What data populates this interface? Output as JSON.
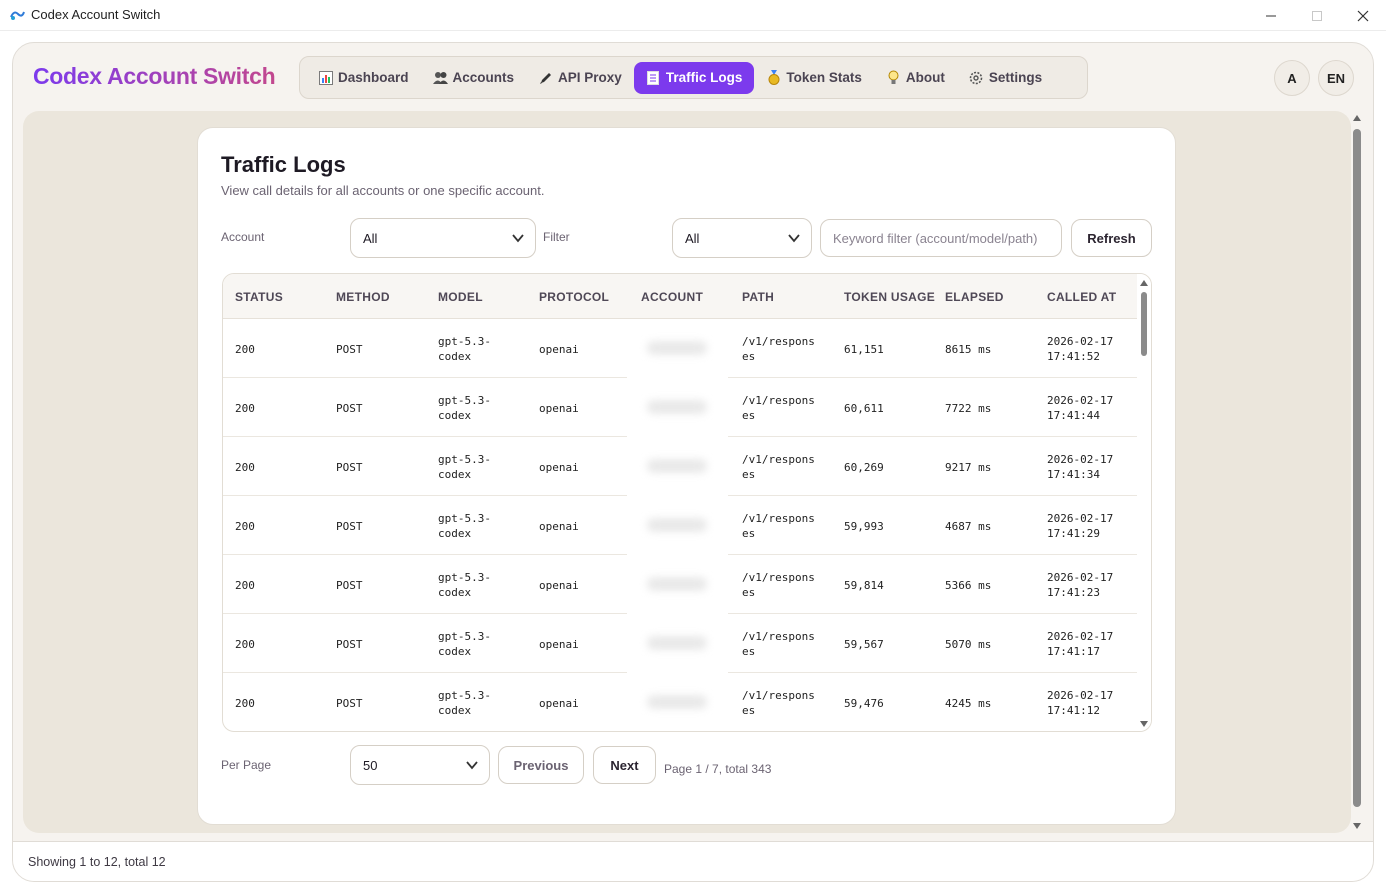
{
  "window": {
    "title": "Codex Account Switch"
  },
  "brand": {
    "name": "Codex Account Switch"
  },
  "nav": [
    {
      "label": "Dashboard",
      "icon": "bar-chart-icon"
    },
    {
      "label": "Accounts",
      "icon": "users-icon"
    },
    {
      "label": "API Proxy",
      "icon": "pen-icon"
    },
    {
      "label": "Traffic Logs",
      "icon": "document-icon",
      "active": true
    },
    {
      "label": "Token Stats",
      "icon": "medal-icon"
    },
    {
      "label": "About",
      "icon": "lightbulb-icon"
    },
    {
      "label": "Settings",
      "icon": "gear-icon"
    }
  ],
  "header_buttons": {
    "theme": "A",
    "language": "EN"
  },
  "page": {
    "title": "Traffic Logs",
    "subtitle": "View call details for all accounts or one specific account."
  },
  "filters": {
    "account_label": "Account",
    "account_value": "All",
    "filter_label": "Filter",
    "filter_value": "All",
    "keyword_placeholder": "Keyword filter (account/model/path)",
    "refresh": "Refresh"
  },
  "table": {
    "columns": [
      "STATUS",
      "METHOD",
      "MODEL",
      "PROTOCOL",
      "ACCOUNT",
      "PATH",
      "TOKEN USAGE",
      "ELAPSED",
      "CALLED AT"
    ],
    "rows": [
      {
        "status": "200",
        "method": "POST",
        "model_a": "gpt-5.3-",
        "model_b": "codex",
        "protocol": "openai",
        "path_a": "/v1/respons",
        "path_b": "es",
        "tokens": "61,151",
        "elapsed": "8615 ms",
        "date": "2026-02-17",
        "time": "17:41:52"
      },
      {
        "status": "200",
        "method": "POST",
        "model_a": "gpt-5.3-",
        "model_b": "codex",
        "protocol": "openai",
        "path_a": "/v1/respons",
        "path_b": "es",
        "tokens": "60,611",
        "elapsed": "7722 ms",
        "date": "2026-02-17",
        "time": "17:41:44"
      },
      {
        "status": "200",
        "method": "POST",
        "model_a": "gpt-5.3-",
        "model_b": "codex",
        "protocol": "openai",
        "path_a": "/v1/respons",
        "path_b": "es",
        "tokens": "60,269",
        "elapsed": "9217 ms",
        "date": "2026-02-17",
        "time": "17:41:34"
      },
      {
        "status": "200",
        "method": "POST",
        "model_a": "gpt-5.3-",
        "model_b": "codex",
        "protocol": "openai",
        "path_a": "/v1/respons",
        "path_b": "es",
        "tokens": "59,993",
        "elapsed": "4687 ms",
        "date": "2026-02-17",
        "time": "17:41:29"
      },
      {
        "status": "200",
        "method": "POST",
        "model_a": "gpt-5.3-",
        "model_b": "codex",
        "protocol": "openai",
        "path_a": "/v1/respons",
        "path_b": "es",
        "tokens": "59,814",
        "elapsed": "5366 ms",
        "date": "2026-02-17",
        "time": "17:41:23"
      },
      {
        "status": "200",
        "method": "POST",
        "model_a": "gpt-5.3-",
        "model_b": "codex",
        "protocol": "openai",
        "path_a": "/v1/respons",
        "path_b": "es",
        "tokens": "59,567",
        "elapsed": "5070 ms",
        "date": "2026-02-17",
        "time": "17:41:17"
      },
      {
        "status": "200",
        "method": "POST",
        "model_a": "gpt-5.3-",
        "model_b": "codex",
        "protocol": "openai",
        "path_a": "/v1/respons",
        "path_b": "es",
        "tokens": "59,476",
        "elapsed": "4245 ms",
        "date": "2026-02-17",
        "time": "17:41:12"
      }
    ]
  },
  "pagination": {
    "per_page_label": "Per Page",
    "per_page_value": "50",
    "previous": "Previous",
    "next": "Next",
    "page_info": "Page 1 / 7, total 343"
  },
  "status_bar": {
    "text": "Showing 1 to 12, total 12"
  },
  "colors": {
    "accent": "#7c3aed",
    "brand_end": "#c2478e",
    "background": "#f6f3ef"
  }
}
